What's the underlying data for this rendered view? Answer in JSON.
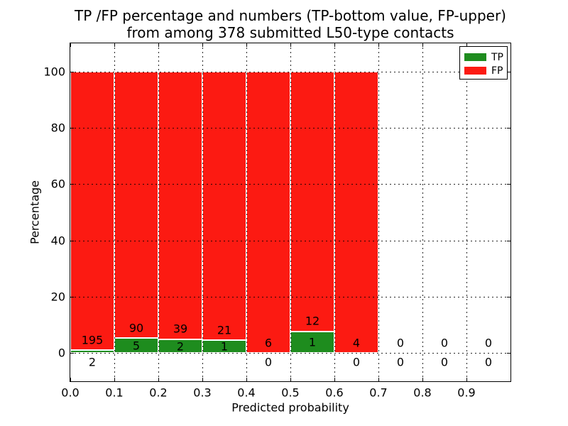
{
  "title": {
    "line1": "TP /FP percentage and numbers (TP-bottom value, FP-upper)",
    "line2": "from among 378 submitted L50-type contacts"
  },
  "axes": {
    "xlabel": "Predicted probability",
    "ylabel": "Percentage"
  },
  "legend": {
    "items": [
      {
        "label": "TP",
        "color": "#1e8c1e"
      },
      {
        "label": "FP",
        "color": "#fc1a12"
      }
    ]
  },
  "chart_data": {
    "type": "bar",
    "stacked": true,
    "title": "TP /FP percentage and numbers (TP-bottom value, FP-upper) from among 378 submitted L50-type contacts",
    "xlabel": "Predicted probability",
    "ylabel": "Percentage",
    "xlim": [
      0.0,
      1.0
    ],
    "ylim": [
      -10,
      110
    ],
    "x_tick_labels": [
      "0.0",
      "0.1",
      "0.2",
      "0.3",
      "0.4",
      "0.5",
      "0.6",
      "0.7",
      "0.8",
      "0.9"
    ],
    "y_tick_values": [
      0,
      20,
      40,
      60,
      80,
      100
    ],
    "grid": "dotted",
    "legend_position": "upper right",
    "total_contacts": 378,
    "colors": {
      "tp": "#1e8c1e",
      "fp": "#fc1a12",
      "bar_edge": "#ffffff",
      "grid": "#000000"
    },
    "series": [
      {
        "name": "TP",
        "color": "#1e8c1e"
      },
      {
        "name": "FP",
        "color": "#fc1a12"
      }
    ],
    "bins": [
      {
        "x_start": 0.0,
        "x_end": 0.1,
        "tp_count": 2,
        "fp_count": 195,
        "tp_pct": 1.02,
        "fp_pct": 98.98,
        "tp_label_pos": "below"
      },
      {
        "x_start": 0.1,
        "x_end": 0.2,
        "tp_count": 5,
        "fp_count": 90,
        "tp_pct": 5.26,
        "fp_pct": 94.74,
        "tp_label_pos": "inside"
      },
      {
        "x_start": 0.2,
        "x_end": 0.3,
        "tp_count": 2,
        "fp_count": 39,
        "tp_pct": 4.88,
        "fp_pct": 95.12,
        "tp_label_pos": "inside"
      },
      {
        "x_start": 0.3,
        "x_end": 0.4,
        "tp_count": 1,
        "fp_count": 21,
        "tp_pct": 4.55,
        "fp_pct": 95.45,
        "tp_label_pos": "inside"
      },
      {
        "x_start": 0.4,
        "x_end": 0.5,
        "tp_count": 0,
        "fp_count": 6,
        "tp_pct": 0,
        "fp_pct": 100,
        "tp_label_pos": "below"
      },
      {
        "x_start": 0.5,
        "x_end": 0.6,
        "tp_count": 1,
        "fp_count": 12,
        "tp_pct": 7.69,
        "fp_pct": 92.31,
        "tp_label_pos": "inside"
      },
      {
        "x_start": 0.6,
        "x_end": 0.7,
        "tp_count": 0,
        "fp_count": 4,
        "tp_pct": 0,
        "fp_pct": 100,
        "tp_label_pos": "below"
      },
      {
        "x_start": 0.7,
        "x_end": 0.8,
        "tp_count": 0,
        "fp_count": 0,
        "tp_pct": 0,
        "fp_pct": 0,
        "tp_label_pos": "below"
      },
      {
        "x_start": 0.8,
        "x_end": 0.9,
        "tp_count": 0,
        "fp_count": 0,
        "tp_pct": 0,
        "fp_pct": 0,
        "tp_label_pos": "below"
      },
      {
        "x_start": 0.9,
        "x_end": 1.0,
        "tp_count": 0,
        "fp_count": 0,
        "tp_pct": 0,
        "fp_pct": 0,
        "tp_label_pos": "below"
      }
    ],
    "label_offsets": {
      "fp_label_above_tp_top_pct": 3.7,
      "below_axis_center_pct": -3.2
    }
  }
}
